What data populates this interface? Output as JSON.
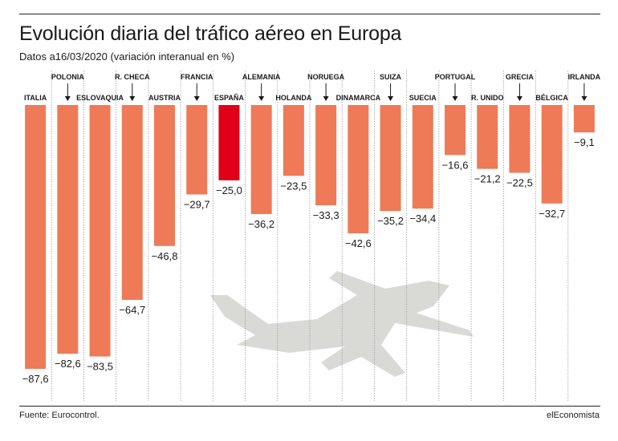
{
  "title": "Evolución diaria del tráfico aéreo en Europa",
  "subtitle": "Datos a16/03/2020 (variación interanual en %)",
  "source": "Fuente: Eurocontrol.",
  "credit": "elEconomista",
  "colors": {
    "bar": "#ee7a57",
    "highlight": "#e1001a",
    "airplane": "#d9d9d6",
    "divider": "#9a9a9a"
  },
  "chart_data": {
    "type": "bar",
    "title": "Evolución diaria del tráfico aéreo en Europa",
    "xlabel": "",
    "ylabel": "",
    "ylim": [
      -90,
      0
    ],
    "grid": false,
    "legend": "none",
    "highlight": "ESPAÑA",
    "categories": [
      "ITALIA",
      "POLONIA",
      "ESLOVAQUIA",
      "R. CHECA",
      "AUSTRIA",
      "FRANCIA",
      "ESPAÑA",
      "ALEMANIA",
      "HOLANDA",
      "NORUEGA",
      "DINAMARCA",
      "SUIZA",
      "SUECIA",
      "PORTUGAL",
      "R. UNIDO",
      "GRECIA",
      "BÉLGICA",
      "IRLANDA"
    ],
    "values": [
      -87.6,
      -82.6,
      -83.5,
      -64.7,
      -46.8,
      -29.7,
      -25.0,
      -36.2,
      -23.5,
      -33.3,
      -42.6,
      -35.2,
      -34.4,
      -16.6,
      -21.2,
      -22.5,
      -32.7,
      -9.1
    ],
    "value_labels": [
      "−87,6",
      "−82,6",
      "−83,5",
      "−64,7",
      "−46,8",
      "−29,7",
      "−25,0",
      "−36,2",
      "−23,5",
      "−33,3",
      "−42,6",
      "−35,2",
      "−34,4",
      "−16,6",
      "−21,2",
      "−22,5",
      "−32,7",
      "−9,1"
    ],
    "label_rows": [
      "low",
      "high",
      "low",
      "high",
      "low",
      "high",
      "low",
      "high",
      "low",
      "high",
      "low",
      "high",
      "low",
      "high",
      "low",
      "high",
      "low",
      "high"
    ]
  }
}
